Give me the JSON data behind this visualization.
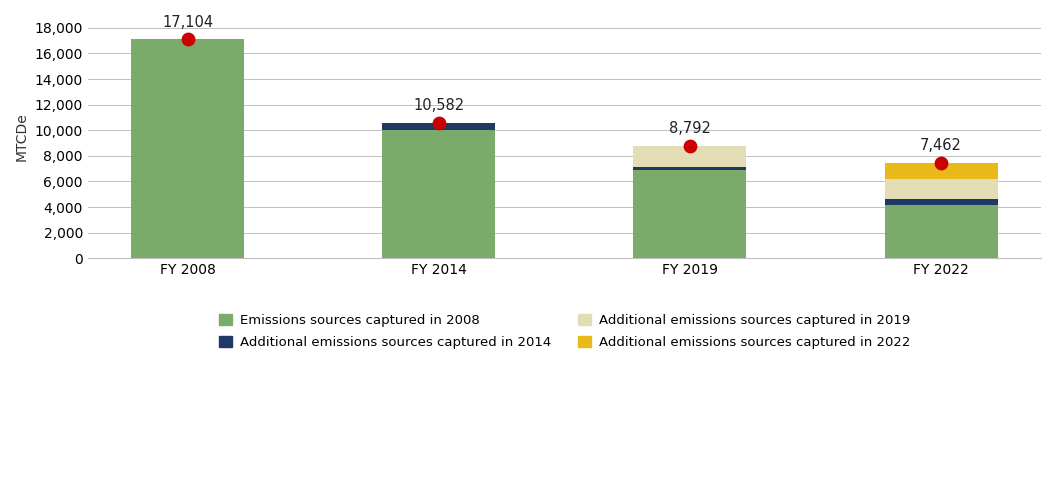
{
  "categories": [
    "FY 2008",
    "FY 2014",
    "FY 2019",
    "FY 2022"
  ],
  "totals": [
    17104,
    10582,
    8792,
    7462
  ],
  "segments": {
    "green_2008": [
      17104,
      10000,
      6900,
      4200
    ],
    "navy_2014": [
      0,
      582,
      200,
      400
    ],
    "tan_2019": [
      0,
      0,
      1692,
      1562
    ],
    "yellow_2022": [
      0,
      0,
      0,
      1300
    ]
  },
  "colors": {
    "green": "#7aab6a",
    "navy": "#1f3864",
    "tan": "#e2ddb5",
    "yellow": "#e8b918"
  },
  "dot_color": "#cc0000",
  "dot_size": 80,
  "ylabel": "MTCDe",
  "ylim": [
    0,
    19000
  ],
  "yticks": [
    0,
    2000,
    4000,
    6000,
    8000,
    10000,
    12000,
    14000,
    16000,
    18000
  ],
  "legend_labels_col1": [
    "Emissions sources captured in 2008",
    "Additional emissions sources captured in 2019"
  ],
  "legend_labels_col2": [
    "Additional emissions sources captured in 2014",
    "Additional emissions sources captured in 2022"
  ],
  "legend_colors_col1": [
    "#7aab6a",
    "#e2ddb5"
  ],
  "legend_colors_col2": [
    "#1f3864",
    "#e8b918"
  ],
  "bar_width": 0.45,
  "figure_bg": "#ffffff",
  "axes_bg": "#ffffff",
  "grid_color": "#c0c0c0",
  "annotation_fontsize": 10.5,
  "ylabel_fontsize": 10,
  "tick_fontsize": 10,
  "legend_fontsize": 9.5
}
